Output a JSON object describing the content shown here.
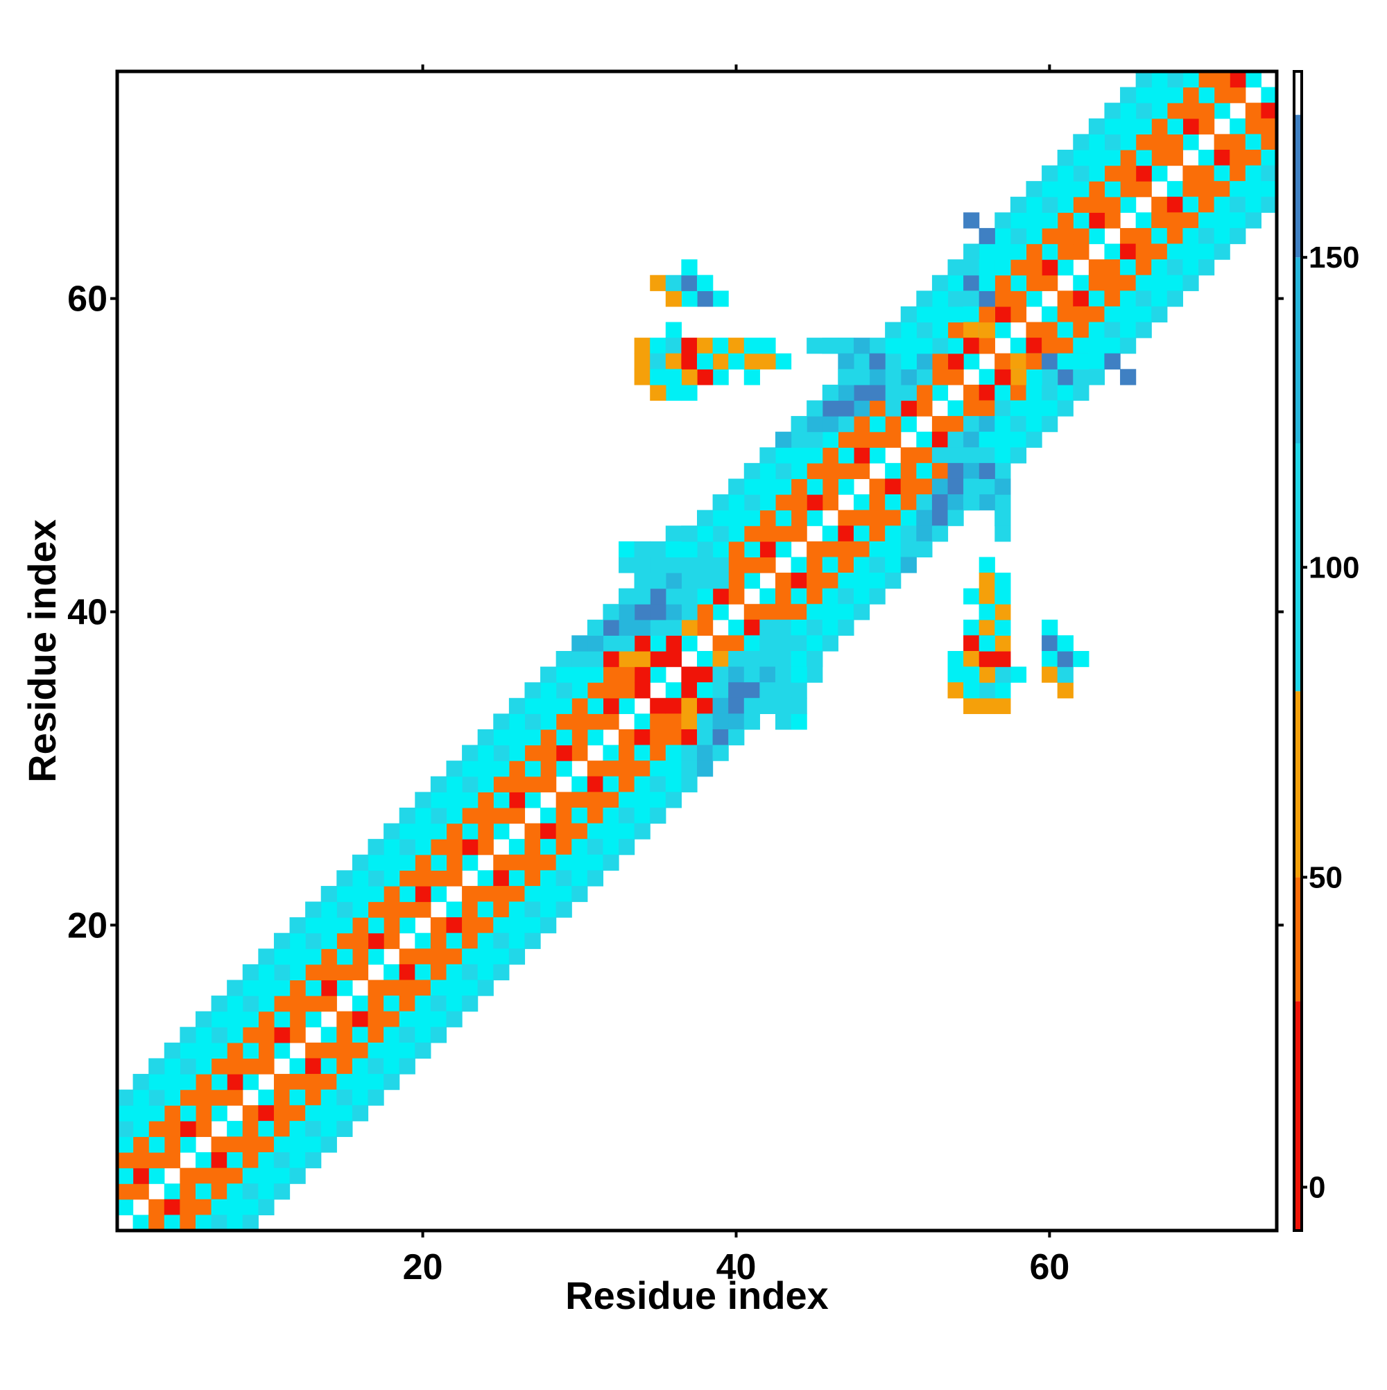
{
  "chart_data": {
    "type": "heatmap",
    "title": "",
    "xlabel": "Residue index",
    "ylabel": "Residue index",
    "xlim": [
      0.5,
      74.5
    ],
    "ylim": [
      0.5,
      74.5
    ],
    "x_ticks": [
      20,
      40,
      60
    ],
    "y_ticks": [
      20,
      40,
      60
    ],
    "grid": false,
    "colorbar": {
      "placement": "right",
      "range": [
        -7,
        180
      ],
      "ticks": [
        0,
        50,
        100,
        150
      ],
      "bands": [
        {
          "from": -7,
          "to": 30,
          "color": "#f01408"
        },
        {
          "from": 30,
          "to": 50,
          "color": "#fa6e08"
        },
        {
          "from": 50,
          "to": 80,
          "color": "#f5a00a"
        },
        {
          "from": 80,
          "to": 120,
          "color": "#22d7e8"
        },
        {
          "from": 120,
          "to": 150,
          "color": "#27b6dc"
        },
        {
          "from": 150,
          "to": 173,
          "color": "#3f80c3"
        },
        {
          "from": 173,
          "to": 180,
          "color": "#ffffff"
        }
      ]
    },
    "colors": {
      "red": "#f01408",
      "orange": "#fa6e08",
      "amber": "#f5a00a",
      "cyan": "#00f0f5",
      "sky": "#22d7e8",
      "azure": "#27b6dc",
      "steel": "#3f80c3"
    },
    "value_by_color": {
      "red": 10,
      "orange": 40,
      "amber": 65,
      "cyan": 95,
      "sky": 110,
      "azure": 135,
      "steel": 160
    },
    "diagonal_offsets": {
      "1": [
        "cyan",
        "orange",
        "cyan",
        "orange",
        "cyan",
        "orange",
        "cyan",
        "orange",
        "cyan",
        "orange",
        "cyan",
        "orange",
        "cyan",
        "orange",
        "cyan",
        "orange",
        "cyan",
        "orange",
        "cyan",
        "orange",
        "cyan",
        "orange",
        "cyan",
        "orange",
        "cyan",
        "orange",
        "cyan",
        "orange",
        "cyan",
        "orange",
        "cyan",
        "orange",
        "cyan",
        "red",
        "cyan",
        "red",
        "cyan",
        "orange",
        "cyan",
        "orange",
        "cyan",
        "orange",
        "cyan",
        "orange",
        "cyan",
        "orange",
        "cyan",
        "orange",
        "cyan",
        "orange",
        "cyan",
        "orange",
        "cyan",
        "orange",
        "cyan",
        "orange",
        "cyan",
        "orange",
        "cyan",
        "orange",
        "cyan",
        "orange",
        "cyan",
        "orange",
        "cyan",
        "orange",
        "cyan",
        "orange",
        "cyan",
        "orange",
        "cyan",
        "orange",
        "cyan"
      ],
      "2": [
        "orange",
        "red",
        "orange",
        "orange",
        "red",
        "orange",
        "orange",
        "red",
        "orange",
        "orange",
        "red",
        "orange",
        "orange",
        "red",
        "orange",
        "orange",
        "red",
        "orange",
        "orange",
        "red",
        "orange",
        "orange",
        "red",
        "orange",
        "orange",
        "red",
        "orange",
        "orange",
        "red",
        "orange",
        "orange",
        "red",
        "orange",
        "red",
        "red",
        "red",
        "amber",
        "orange",
        "red",
        "orange",
        "orange",
        "red",
        "orange",
        "orange",
        "red",
        "orange",
        "orange",
        "red",
        "orange",
        "orange",
        "red",
        "orange",
        "orange",
        "red",
        "orange",
        "orange",
        "red",
        "orange",
        "orange",
        "red",
        "orange",
        "orange",
        "red",
        "orange",
        "orange",
        "red",
        "orange",
        "orange",
        "red",
        "orange",
        "orange",
        "red"
      ],
      "3": [
        "cyan",
        "orange",
        "cyan",
        "orange",
        "cyan",
        "orange",
        "cyan",
        "orange",
        "cyan",
        "orange",
        "cyan",
        "orange",
        "cyan",
        "orange",
        "cyan",
        "orange",
        "cyan",
        "orange",
        "cyan",
        "orange",
        "cyan",
        "orange",
        "cyan",
        "orange",
        "cyan",
        "orange",
        "cyan",
        "orange",
        "cyan",
        "orange",
        "cyan",
        "orange",
        "orange",
        "amber",
        "cyan",
        "sky",
        "sky",
        "cyan",
        "sky",
        "orange",
        "cyan",
        "orange",
        "cyan",
        "orange",
        "cyan",
        "orange",
        "cyan",
        "orange",
        "cyan",
        "sky",
        "sky",
        "sky",
        "orange",
        "cyan",
        "orange",
        "cyan",
        "orange",
        "cyan",
        "orange",
        "cyan",
        "orange",
        "cyan",
        "orange",
        "cyan",
        "orange",
        "cyan",
        "orange",
        "cyan",
        "orange",
        "cyan",
        "orange"
      ],
      "4": [
        "orange",
        "orange",
        "orange",
        "orange",
        "orange",
        "orange",
        "orange",
        "orange",
        "orange",
        "orange",
        "orange",
        "orange",
        "orange",
        "orange",
        "orange",
        "orange",
        "orange",
        "orange",
        "orange",
        "orange",
        "orange",
        "orange",
        "orange",
        "orange",
        "orange",
        "orange",
        "orange",
        "orange",
        "orange",
        "orange",
        "orange",
        "orange",
        "amber",
        "red",
        "sky",
        "azure",
        "sky",
        "sky",
        "sky",
        "orange",
        "orange",
        "orange",
        "orange",
        "orange",
        "orange",
        "orange",
        "orange",
        "orange",
        "orange",
        "sky",
        "azure",
        "azure",
        "sky",
        "orange",
        "orange",
        "orange",
        "orange",
        "orange",
        "orange",
        "orange",
        "orange",
        "orange",
        "orange",
        "orange",
        "orange",
        "orange",
        "orange",
        "orange",
        "orange",
        "orange"
      ],
      "5": [
        "cyan",
        "cyan",
        "cyan",
        "cyan",
        "cyan",
        "cyan",
        "cyan",
        "cyan",
        "cyan",
        "cyan",
        "cyan",
        "cyan",
        "cyan",
        "cyan",
        "cyan",
        "cyan",
        "cyan",
        "cyan",
        "cyan",
        "cyan",
        "cyan",
        "cyan",
        "cyan",
        "cyan",
        "cyan",
        "cyan",
        "cyan",
        "cyan",
        "cyan",
        "cyan",
        "cyan",
        "red",
        "sky",
        "azure",
        "steel",
        "sky",
        "sky",
        "sky",
        "cyan",
        "cyan",
        "cyan",
        "cyan",
        "cyan",
        "cyan",
        "cyan",
        "cyan",
        "sky",
        "azure",
        "steel",
        "sky",
        "cyan",
        "cyan",
        "cyan",
        "cyan",
        "cyan",
        "cyan",
        "cyan",
        "cyan",
        "cyan",
        "cyan",
        "cyan",
        "cyan",
        "cyan",
        "cyan",
        "cyan",
        "cyan",
        "cyan",
        "cyan",
        "cyan"
      ],
      "6": [
        "sky",
        "cyan",
        "sky",
        "cyan",
        "sky",
        "cyan",
        "sky",
        "cyan",
        "sky",
        "cyan",
        "sky",
        "cyan",
        "sky",
        "cyan",
        "sky",
        "cyan",
        "sky",
        "cyan",
        "sky",
        "cyan",
        "sky",
        "cyan",
        "sky",
        "cyan",
        "sky",
        "cyan",
        "sky",
        "cyan",
        "sky",
        "cyan",
        "sky",
        "sky",
        "azure",
        "steel",
        "steel",
        "azure",
        "sky",
        "sky",
        "sky",
        "cyan",
        "sky",
        "cyan",
        "sky",
        "cyan",
        "sky",
        "azure",
        "steel",
        "steel",
        "azure",
        "sky",
        "cyan",
        "sky",
        "cyan",
        "sky",
        "cyan",
        "sky",
        "cyan",
        "sky",
        "cyan",
        "sky",
        "cyan",
        "sky",
        "cyan",
        "sky",
        "cyan",
        "sky",
        "cyan",
        "sky"
      ],
      "7": [
        "cyan",
        "cyan",
        "cyan",
        "cyan",
        "cyan",
        "cyan",
        "cyan",
        "cyan",
        "cyan",
        "cyan",
        "cyan",
        "cyan",
        "cyan",
        "cyan",
        "cyan",
        "cyan",
        "cyan",
        "cyan",
        "cyan",
        "cyan",
        "cyan",
        "cyan",
        "cyan",
        "cyan",
        "cyan",
        "cyan",
        "cyan",
        "cyan",
        "cyan",
        "sky",
        "azure",
        "steel",
        "azure",
        "sky",
        "sky",
        "sky",
        "cyan",
        "cyan",
        "cyan",
        "cyan",
        "cyan",
        "cyan",
        "cyan",
        "sky",
        "azure",
        "steel",
        "azure",
        "sky",
        "cyan",
        "cyan",
        "cyan",
        "cyan",
        "cyan",
        "cyan",
        "cyan",
        "cyan",
        "cyan",
        "cyan",
        "cyan",
        "cyan",
        "cyan",
        "cyan",
        "cyan",
        "cyan",
        "cyan",
        "cyan",
        "cyan"
      ],
      "8": [
        "sky",
        "sky",
        "sky",
        "sky",
        "sky",
        "sky",
        "sky",
        "sky",
        "sky",
        "sky",
        "sky",
        "sky",
        "sky",
        "sky",
        "sky",
        "sky",
        "sky",
        "sky",
        "sky",
        "sky",
        "sky",
        "sky",
        "sky",
        "sky",
        "sky",
        "sky",
        "sky",
        "sky",
        "sky",
        "azure",
        "sky",
        "sky",
        "sky",
        "sky",
        "sky",
        "sky",
        "sky",
        "sky",
        "sky",
        "sky",
        "sky",
        "sky",
        "azure",
        "sky",
        "sky",
        "sky",
        "sky",
        "sky",
        "sky",
        "sky",
        "sky",
        "sky",
        "sky",
        "sky",
        "sky",
        "sky",
        "sky",
        "sky",
        "sky",
        "sky",
        "sky",
        "sky",
        "sky",
        "sky",
        "sky",
        "sky"
      ]
    },
    "patches": [
      {
        "x": 44,
        "y": 36,
        "color": "sky"
      },
      {
        "x": 44,
        "y": 35,
        "color": "sky"
      },
      {
        "x": 43,
        "y": 34,
        "color": "sky"
      },
      {
        "x": 42,
        "y": 34,
        "color": "sky"
      },
      {
        "x": 45,
        "y": 36,
        "color": "sky"
      },
      {
        "x": 45,
        "y": 37,
        "color": "sky"
      },
      {
        "x": 33,
        "y": 43,
        "color": "sky"
      },
      {
        "x": 34,
        "y": 43,
        "color": "sky"
      },
      {
        "x": 33,
        "y": 44,
        "color": "cyan"
      },
      {
        "x": 34,
        "y": 44,
        "color": "sky"
      },
      {
        "x": 36,
        "y": 44,
        "color": "cyan"
      },
      {
        "x": 35,
        "y": 43,
        "color": "sky"
      },
      {
        "x": 56,
        "y": 43,
        "color": "cyan"
      },
      {
        "x": 56,
        "y": 42,
        "color": "amber"
      },
      {
        "x": 55,
        "y": 41,
        "color": "cyan"
      },
      {
        "x": 56,
        "y": 41,
        "color": "amber"
      },
      {
        "x": 56,
        "y": 40,
        "color": "cyan"
      },
      {
        "x": 55,
        "y": 39,
        "color": "cyan"
      },
      {
        "x": 56,
        "y": 39,
        "color": "amber"
      },
      {
        "x": 55,
        "y": 38,
        "color": "red"
      },
      {
        "x": 56,
        "y": 38,
        "color": "red"
      },
      {
        "x": 54,
        "y": 37,
        "color": "cyan"
      },
      {
        "x": 55,
        "y": 37,
        "color": "amber"
      },
      {
        "x": 54,
        "y": 36,
        "color": "cyan"
      },
      {
        "x": 55,
        "y": 36,
        "color": "cyan"
      },
      {
        "x": 56,
        "y": 36,
        "color": "cyan"
      },
      {
        "x": 57,
        "y": 36,
        "color": "cyan"
      },
      {
        "x": 54,
        "y": 35,
        "color": "amber"
      },
      {
        "x": 55,
        "y": 35,
        "color": "amber"
      },
      {
        "x": 56,
        "y": 35,
        "color": "amber"
      },
      {
        "x": 60,
        "y": 39,
        "color": "cyan"
      },
      {
        "x": 60,
        "y": 38,
        "color": "steel"
      },
      {
        "x": 61,
        "y": 38,
        "color": "cyan"
      },
      {
        "x": 60,
        "y": 37,
        "color": "cyan"
      },
      {
        "x": 60,
        "y": 36,
        "color": "amber"
      },
      {
        "x": 57,
        "y": 47,
        "color": "sky"
      },
      {
        "x": 57,
        "y": 46,
        "color": "cyan"
      },
      {
        "x": 35,
        "y": 61,
        "color": "amber"
      },
      {
        "x": 36,
        "y": 61,
        "color": "sky"
      },
      {
        "x": 37,
        "y": 61,
        "color": "steel"
      },
      {
        "x": 38,
        "y": 61,
        "color": "cyan"
      },
      {
        "x": 37,
        "y": 62,
        "color": "cyan"
      },
      {
        "x": 36,
        "y": 58,
        "color": "cyan"
      },
      {
        "x": 34,
        "y": 57,
        "color": "amber"
      },
      {
        "x": 35,
        "y": 57,
        "color": "cyan"
      },
      {
        "x": 36,
        "y": 57,
        "color": "sky"
      },
      {
        "x": 37,
        "y": 57,
        "color": "red"
      },
      {
        "x": 38,
        "y": 57,
        "color": "amber"
      },
      {
        "x": 39,
        "y": 57,
        "color": "cyan"
      },
      {
        "x": 40,
        "y": 57,
        "color": "amber"
      },
      {
        "x": 41,
        "y": 57,
        "color": "cyan"
      },
      {
        "x": 42,
        "y": 57,
        "color": "cyan"
      },
      {
        "x": 34,
        "y": 56,
        "color": "amber"
      },
      {
        "x": 35,
        "y": 56,
        "color": "sky"
      },
      {
        "x": 36,
        "y": 56,
        "color": "amber"
      },
      {
        "x": 37,
        "y": 56,
        "color": "red"
      },
      {
        "x": 38,
        "y": 56,
        "color": "cyan"
      },
      {
        "x": 40,
        "y": 56,
        "color": "cyan"
      },
      {
        "x": 34,
        "y": 55,
        "color": "amber"
      },
      {
        "x": 35,
        "y": 55,
        "color": "cyan"
      },
      {
        "x": 36,
        "y": 55,
        "color": "cyan"
      },
      {
        "x": 45,
        "y": 57,
        "color": "sky"
      },
      {
        "x": 46,
        "y": 57,
        "color": "sky"
      },
      {
        "x": 47,
        "y": 57,
        "color": "sky"
      },
      {
        "x": 48,
        "y": 57,
        "color": "azure"
      },
      {
        "x": 47,
        "y": 56,
        "color": "azure"
      },
      {
        "x": 47,
        "y": 55,
        "color": "sky"
      },
      {
        "x": 49,
        "y": 56,
        "color": "steel"
      },
      {
        "x": 55,
        "y": 61,
        "color": "steel"
      },
      {
        "x": 56,
        "y": 61,
        "color": "steel"
      },
      {
        "x": 55,
        "y": 62,
        "color": "sky"
      },
      {
        "x": 56,
        "y": 62,
        "color": "cyan"
      },
      {
        "x": 55,
        "y": 60,
        "color": "sky"
      },
      {
        "x": 55,
        "y": 59,
        "color": "cyan"
      },
      {
        "x": 56,
        "y": 59,
        "color": "amber"
      },
      {
        "x": 55,
        "y": 58,
        "color": "amber"
      },
      {
        "x": 56,
        "y": 58,
        "color": "cyan"
      },
      {
        "x": 55,
        "y": 57,
        "color": "red"
      },
      {
        "x": 56,
        "y": 57,
        "color": "orange"
      },
      {
        "x": 58,
        "y": 56,
        "color": "amber"
      },
      {
        "x": 59,
        "y": 56,
        "color": "orange"
      },
      {
        "x": 60,
        "y": 56,
        "color": "steel"
      },
      {
        "x": 61,
        "y": 56,
        "color": "cyan"
      },
      {
        "x": 64,
        "y": 56,
        "color": "steel"
      },
      {
        "x": 55,
        "y": 65,
        "color": "steel"
      }
    ]
  }
}
